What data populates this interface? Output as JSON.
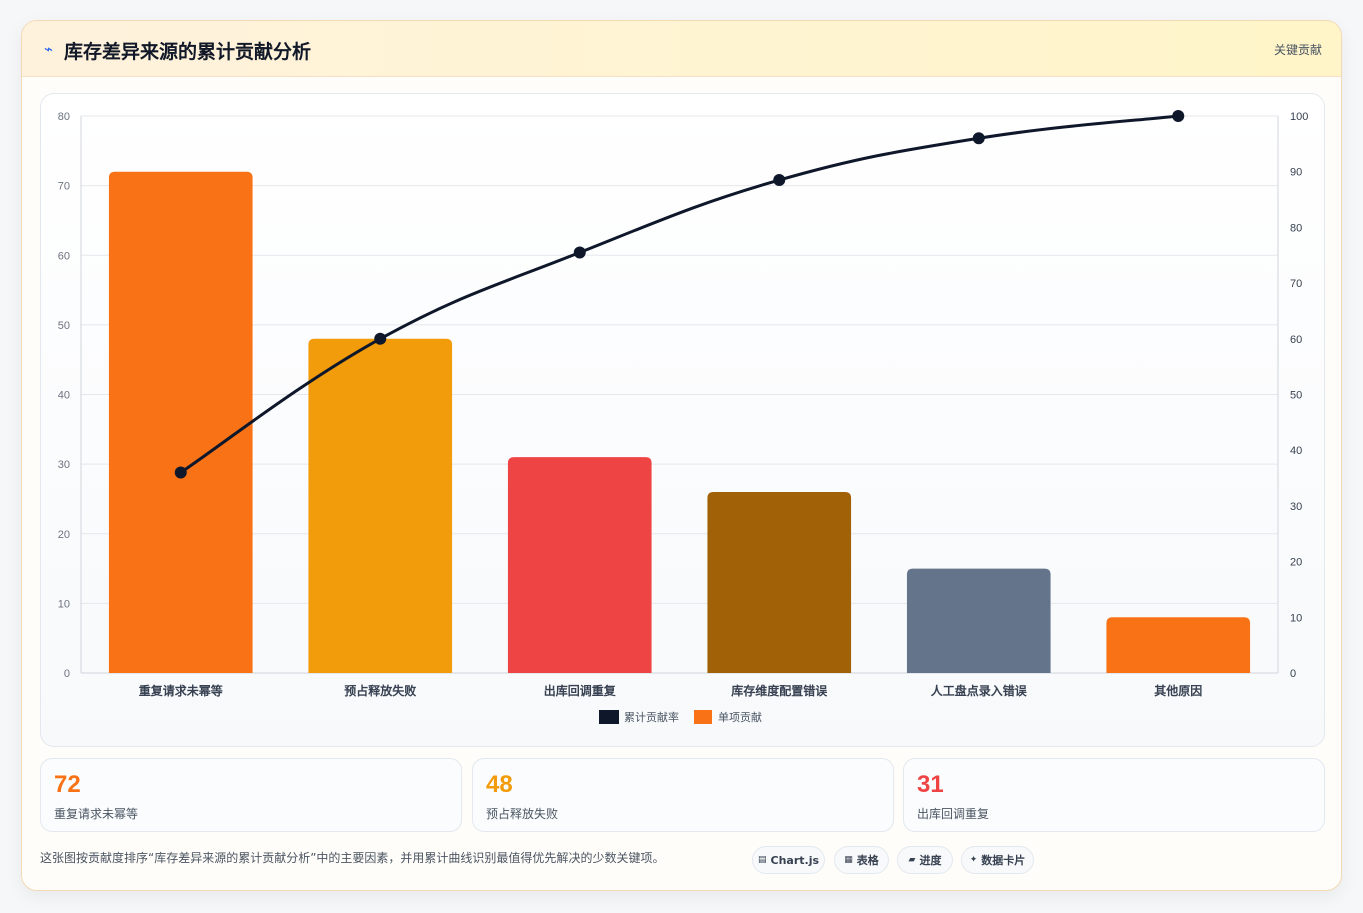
{
  "header": {
    "title_icon": "lightning-icon",
    "title": "库存差异来源的累计贡献分析",
    "badge": "关键贡献"
  },
  "colors": {
    "orange": "#f97316",
    "amber": "#f39c0b",
    "red": "#ef4444",
    "brown": "#a16207",
    "slate": "#64748b",
    "line": "#0f172a"
  },
  "chart_data": {
    "type": "bar",
    "categories": [
      "重复请求未幂等",
      "预占释放失败",
      "出库回调重复",
      "库存维度配置错误",
      "人工盘点录入错误",
      "其他原因"
    ],
    "series": [
      {
        "name": "单项贡献",
        "type": "bar",
        "axis": "left",
        "values": [
          72,
          48,
          31,
          26,
          15,
          8
        ],
        "colors": [
          "#f97316",
          "#f39c0b",
          "#ef4444",
          "#a16207",
          "#64748b",
          "#f97316"
        ]
      },
      {
        "name": "累计贡献率",
        "type": "line",
        "axis": "right",
        "values": [
          36,
          60,
          75.5,
          88.5,
          96,
          100
        ],
        "color": "#0f172a"
      }
    ],
    "ylim_left": [
      0,
      80
    ],
    "yticks_left": [
      0,
      10,
      20,
      30,
      40,
      50,
      60,
      70,
      80
    ],
    "ylim_right": [
      0,
      100
    ],
    "yticks_right": [
      0,
      10,
      20,
      30,
      40,
      50,
      60,
      70,
      80,
      90,
      100
    ],
    "legend_position": "bottom",
    "grid": true
  },
  "stats": [
    {
      "value": "72",
      "label": "重复请求未幂等",
      "color": "#f97316"
    },
    {
      "value": "48",
      "label": "预占释放失败",
      "color": "#f39c0b"
    },
    {
      "value": "31",
      "label": "出库回调重复",
      "color": "#ef4444"
    }
  ],
  "footnote": "这张图按贡献度排序“库存差异来源的累计贡献分析”中的主要因素，并用累计曲线识别最值得优先解决的少数关键项。",
  "pills": [
    {
      "icon": "chart-icon",
      "glyph": "▤",
      "label": "Chart.js"
    },
    {
      "icon": "table-icon",
      "glyph": "▦",
      "label": "表格"
    },
    {
      "icon": "progress-icon",
      "glyph": "▰",
      "label": "进度"
    },
    {
      "icon": "card-icon",
      "glyph": "✦",
      "label": "数据卡片"
    }
  ]
}
